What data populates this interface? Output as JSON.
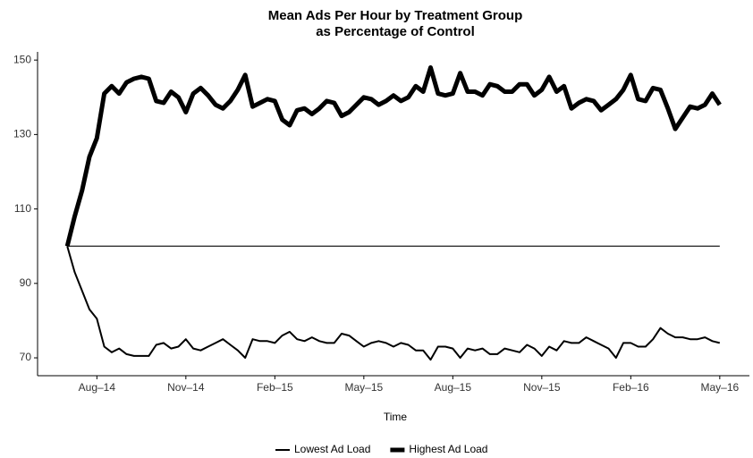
{
  "chart_data": {
    "type": "line",
    "title": "Mean Ads Per Hour by Treatment Group",
    "subtitle": "as Percentage of Control",
    "x_label": "Time",
    "x": [
      6,
      6.25,
      6.5,
      6.75,
      7,
      7.25,
      7.5,
      7.75,
      8,
      8.25,
      8.5,
      8.75,
      9,
      9.25,
      9.5,
      9.75,
      10,
      10.25,
      10.5,
      10.75,
      11,
      11.25,
      11.5,
      11.75,
      12,
      12.25,
      12.5,
      12.75,
      13,
      13.25,
      13.5,
      13.75,
      14,
      14.25,
      14.5,
      14.75,
      15,
      15.25,
      15.5,
      15.75,
      16,
      16.25,
      16.5,
      16.75,
      17,
      17.25,
      17.5,
      17.75,
      18,
      18.25,
      18.5,
      18.75,
      19,
      19.25,
      19.5,
      19.75,
      20,
      20.25,
      20.5,
      20.75,
      21,
      21.25,
      21.5,
      21.75,
      22,
      22.25,
      22.5,
      22.75,
      23,
      23.25,
      23.5,
      23.75,
      24,
      24.25,
      24.5,
      24.75,
      25,
      25.25,
      25.5,
      25.75,
      26,
      26.25,
      26.5,
      26.75,
      27,
      27.25,
      27.5,
      27.75,
      28
    ],
    "series": [
      {
        "name": "Lowest Ad Load",
        "color": "#000000",
        "line_width": 2,
        "values": [
          100,
          93,
          88,
          83,
          80.5,
          73,
          71.5,
          72.5,
          71,
          70.5,
          70.5,
          70.5,
          73.5,
          74,
          72.5,
          73,
          75,
          72.5,
          72,
          73,
          74,
          75,
          73.5,
          72,
          70,
          75,
          74.5,
          74.5,
          74,
          76,
          77,
          75,
          74.5,
          75.5,
          74.5,
          74,
          74,
          76.5,
          76,
          74.5,
          73,
          74,
          74.5,
          74,
          73,
          74,
          73.5,
          72,
          72,
          69.5,
          73,
          73,
          72.5,
          70,
          72.5,
          72,
          72.5,
          71,
          71,
          72.5,
          72,
          71.5,
          73.5,
          72.5,
          70.5,
          73,
          72,
          74.5,
          74,
          74,
          75.5,
          74.5,
          73.5,
          72.5,
          70,
          74,
          74,
          73,
          73,
          75,
          78,
          76.5,
          75.5,
          75.5,
          75,
          75,
          75.5,
          74.5,
          74
        ]
      },
      {
        "name": "Highest Ad Load",
        "color": "#000000",
        "line_width": 5,
        "values": [
          100,
          108,
          115,
          124,
          129,
          141,
          143,
          141,
          144,
          145,
          145.5,
          145,
          139,
          138.5,
          141.5,
          140,
          136,
          141,
          142.5,
          140.5,
          138,
          137,
          139,
          142,
          146,
          137.5,
          138.5,
          139.5,
          139,
          134,
          132.5,
          136.5,
          137,
          135.5,
          137,
          139,
          138.5,
          135,
          136,
          138,
          140,
          139.5,
          138,
          139,
          140.5,
          139,
          140,
          143,
          141.5,
          148,
          141,
          140.5,
          141,
          146.5,
          141.5,
          141.5,
          140.5,
          143.5,
          143,
          141.5,
          141.5,
          143.5,
          143.5,
          140.5,
          142,
          145.5,
          141.5,
          143,
          137,
          138.5,
          139.5,
          139,
          136.5,
          138,
          139.5,
          142,
          146,
          139.5,
          139,
          142.5,
          142,
          137,
          131.5,
          134.5,
          137.5,
          137,
          138,
          141,
          138
        ]
      }
    ],
    "reference_line": 100,
    "xlim": [
      5,
      29
    ],
    "xticks": [
      {
        "value": 7,
        "label": "Aug–14"
      },
      {
        "value": 10,
        "label": "Nov–14"
      },
      {
        "value": 13,
        "label": "Feb–15"
      },
      {
        "value": 16,
        "label": "May–15"
      },
      {
        "value": 19,
        "label": "Aug–15"
      },
      {
        "value": 22,
        "label": "Nov–15"
      },
      {
        "value": 25,
        "label": "Feb–16"
      },
      {
        "value": 28,
        "label": "May–16"
      }
    ],
    "ylim": [
      65.2,
      152.2
    ],
    "yticks": [
      70,
      90,
      110,
      130,
      150
    ],
    "grid": false,
    "legend": "bottom"
  }
}
